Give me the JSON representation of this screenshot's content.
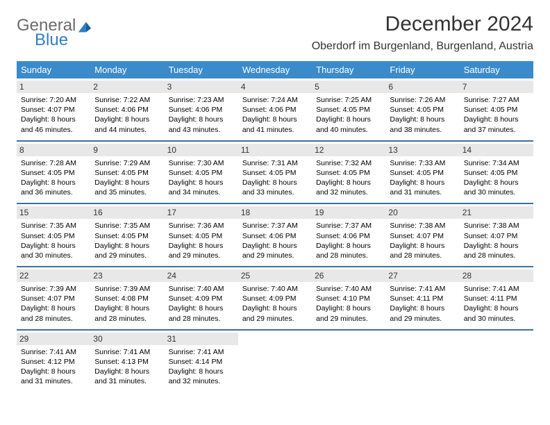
{
  "colors": {
    "header_bg": "#3b8bca",
    "row_divider": "#3b6f9e",
    "daynum_bg": "#e8e8e8",
    "page_bg": "#ffffff",
    "text": "#000000",
    "title_text": "#333333",
    "logo_gray": "#6a6a6a",
    "logo_blue": "#2f7fc2"
  },
  "logo": {
    "line1": "General",
    "line2": "Blue"
  },
  "title": "December 2024",
  "location": "Oberdorf im Burgenland, Burgenland, Austria",
  "weekdays": [
    "Sunday",
    "Monday",
    "Tuesday",
    "Wednesday",
    "Thursday",
    "Friday",
    "Saturday"
  ],
  "weeks": [
    [
      {
        "num": "1",
        "sunrise": "Sunrise: 7:20 AM",
        "sunset": "Sunset: 4:07 PM",
        "day1": "Daylight: 8 hours",
        "day2": "and 46 minutes."
      },
      {
        "num": "2",
        "sunrise": "Sunrise: 7:22 AM",
        "sunset": "Sunset: 4:06 PM",
        "day1": "Daylight: 8 hours",
        "day2": "and 44 minutes."
      },
      {
        "num": "3",
        "sunrise": "Sunrise: 7:23 AM",
        "sunset": "Sunset: 4:06 PM",
        "day1": "Daylight: 8 hours",
        "day2": "and 43 minutes."
      },
      {
        "num": "4",
        "sunrise": "Sunrise: 7:24 AM",
        "sunset": "Sunset: 4:06 PM",
        "day1": "Daylight: 8 hours",
        "day2": "and 41 minutes."
      },
      {
        "num": "5",
        "sunrise": "Sunrise: 7:25 AM",
        "sunset": "Sunset: 4:05 PM",
        "day1": "Daylight: 8 hours",
        "day2": "and 40 minutes."
      },
      {
        "num": "6",
        "sunrise": "Sunrise: 7:26 AM",
        "sunset": "Sunset: 4:05 PM",
        "day1": "Daylight: 8 hours",
        "day2": "and 38 minutes."
      },
      {
        "num": "7",
        "sunrise": "Sunrise: 7:27 AM",
        "sunset": "Sunset: 4:05 PM",
        "day1": "Daylight: 8 hours",
        "day2": "and 37 minutes."
      }
    ],
    [
      {
        "num": "8",
        "sunrise": "Sunrise: 7:28 AM",
        "sunset": "Sunset: 4:05 PM",
        "day1": "Daylight: 8 hours",
        "day2": "and 36 minutes."
      },
      {
        "num": "9",
        "sunrise": "Sunrise: 7:29 AM",
        "sunset": "Sunset: 4:05 PM",
        "day1": "Daylight: 8 hours",
        "day2": "and 35 minutes."
      },
      {
        "num": "10",
        "sunrise": "Sunrise: 7:30 AM",
        "sunset": "Sunset: 4:05 PM",
        "day1": "Daylight: 8 hours",
        "day2": "and 34 minutes."
      },
      {
        "num": "11",
        "sunrise": "Sunrise: 7:31 AM",
        "sunset": "Sunset: 4:05 PM",
        "day1": "Daylight: 8 hours",
        "day2": "and 33 minutes."
      },
      {
        "num": "12",
        "sunrise": "Sunrise: 7:32 AM",
        "sunset": "Sunset: 4:05 PM",
        "day1": "Daylight: 8 hours",
        "day2": "and 32 minutes."
      },
      {
        "num": "13",
        "sunrise": "Sunrise: 7:33 AM",
        "sunset": "Sunset: 4:05 PM",
        "day1": "Daylight: 8 hours",
        "day2": "and 31 minutes."
      },
      {
        "num": "14",
        "sunrise": "Sunrise: 7:34 AM",
        "sunset": "Sunset: 4:05 PM",
        "day1": "Daylight: 8 hours",
        "day2": "and 30 minutes."
      }
    ],
    [
      {
        "num": "15",
        "sunrise": "Sunrise: 7:35 AM",
        "sunset": "Sunset: 4:05 PM",
        "day1": "Daylight: 8 hours",
        "day2": "and 30 minutes."
      },
      {
        "num": "16",
        "sunrise": "Sunrise: 7:35 AM",
        "sunset": "Sunset: 4:05 PM",
        "day1": "Daylight: 8 hours",
        "day2": "and 29 minutes."
      },
      {
        "num": "17",
        "sunrise": "Sunrise: 7:36 AM",
        "sunset": "Sunset: 4:05 PM",
        "day1": "Daylight: 8 hours",
        "day2": "and 29 minutes."
      },
      {
        "num": "18",
        "sunrise": "Sunrise: 7:37 AM",
        "sunset": "Sunset: 4:06 PM",
        "day1": "Daylight: 8 hours",
        "day2": "and 29 minutes."
      },
      {
        "num": "19",
        "sunrise": "Sunrise: 7:37 AM",
        "sunset": "Sunset: 4:06 PM",
        "day1": "Daylight: 8 hours",
        "day2": "and 28 minutes."
      },
      {
        "num": "20",
        "sunrise": "Sunrise: 7:38 AM",
        "sunset": "Sunset: 4:07 PM",
        "day1": "Daylight: 8 hours",
        "day2": "and 28 minutes."
      },
      {
        "num": "21",
        "sunrise": "Sunrise: 7:38 AM",
        "sunset": "Sunset: 4:07 PM",
        "day1": "Daylight: 8 hours",
        "day2": "and 28 minutes."
      }
    ],
    [
      {
        "num": "22",
        "sunrise": "Sunrise: 7:39 AM",
        "sunset": "Sunset: 4:07 PM",
        "day1": "Daylight: 8 hours",
        "day2": "and 28 minutes."
      },
      {
        "num": "23",
        "sunrise": "Sunrise: 7:39 AM",
        "sunset": "Sunset: 4:08 PM",
        "day1": "Daylight: 8 hours",
        "day2": "and 28 minutes."
      },
      {
        "num": "24",
        "sunrise": "Sunrise: 7:40 AM",
        "sunset": "Sunset: 4:09 PM",
        "day1": "Daylight: 8 hours",
        "day2": "and 28 minutes."
      },
      {
        "num": "25",
        "sunrise": "Sunrise: 7:40 AM",
        "sunset": "Sunset: 4:09 PM",
        "day1": "Daylight: 8 hours",
        "day2": "and 29 minutes."
      },
      {
        "num": "26",
        "sunrise": "Sunrise: 7:40 AM",
        "sunset": "Sunset: 4:10 PM",
        "day1": "Daylight: 8 hours",
        "day2": "and 29 minutes."
      },
      {
        "num": "27",
        "sunrise": "Sunrise: 7:41 AM",
        "sunset": "Sunset: 4:11 PM",
        "day1": "Daylight: 8 hours",
        "day2": "and 29 minutes."
      },
      {
        "num": "28",
        "sunrise": "Sunrise: 7:41 AM",
        "sunset": "Sunset: 4:11 PM",
        "day1": "Daylight: 8 hours",
        "day2": "and 30 minutes."
      }
    ],
    [
      {
        "num": "29",
        "sunrise": "Sunrise: 7:41 AM",
        "sunset": "Sunset: 4:12 PM",
        "day1": "Daylight: 8 hours",
        "day2": "and 31 minutes."
      },
      {
        "num": "30",
        "sunrise": "Sunrise: 7:41 AM",
        "sunset": "Sunset: 4:13 PM",
        "day1": "Daylight: 8 hours",
        "day2": "and 31 minutes."
      },
      {
        "num": "31",
        "sunrise": "Sunrise: 7:41 AM",
        "sunset": "Sunset: 4:14 PM",
        "day1": "Daylight: 8 hours",
        "day2": "and 32 minutes."
      },
      null,
      null,
      null,
      null
    ]
  ]
}
